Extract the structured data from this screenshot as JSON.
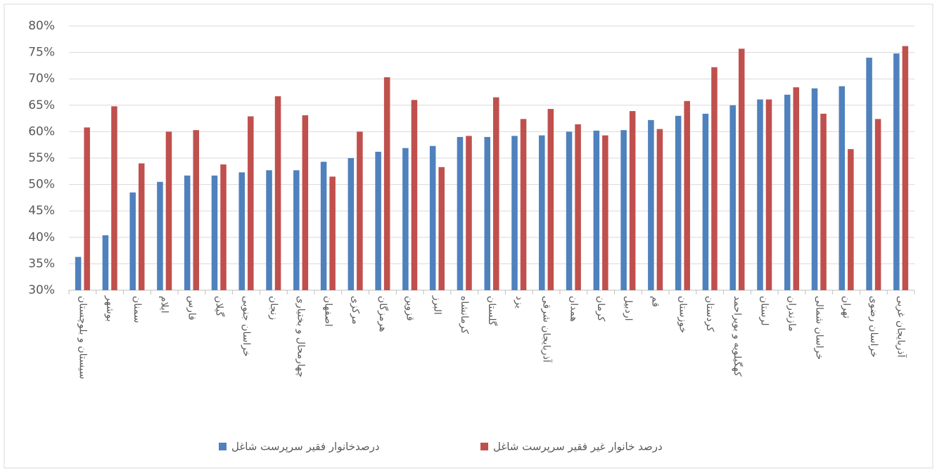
{
  "chart_data": {
    "type": "bar",
    "categories": [
      "سیستان و بلوچستان",
      "بوشهر",
      "سمنان",
      "ایلام",
      "فارس",
      "گیلان",
      "خراسان جنوبی",
      "زنجان",
      "چهارمحال و بختیاری",
      "اصفهان",
      "مرکزی",
      "هرمزگان",
      "قزوین",
      "البرز",
      "کرمانشاه",
      "گلستان",
      "یزد",
      "آذربایجان شرقی",
      "همدان",
      "کرمان",
      "اردبیل",
      "قم",
      "خوزستان",
      "کردستان",
      "کهگیلویه و بویراحمد",
      "لرستان",
      "مازندران",
      "خراسان شمالی",
      "تهران",
      "خراسان رضوی",
      "آذربایجان غربی"
    ],
    "series": [
      {
        "name": "درصدخانوار فقیر سرپرست شاغل",
        "color": "#4f81bd",
        "values": [
          36.3,
          40.4,
          48.5,
          50.5,
          51.7,
          51.7,
          52.3,
          52.7,
          52.7,
          54.3,
          55.0,
          56.2,
          56.9,
          57.3,
          59.0,
          59.0,
          59.2,
          59.3,
          60.0,
          60.2,
          60.3,
          62.2,
          63.0,
          63.4,
          65.0,
          66.1,
          67.0,
          68.2,
          68.6,
          74.0,
          74.8
        ]
      },
      {
        "name": "درصد خانوار غیر فقیر سرپرست شاغل",
        "color": "#c0504d",
        "values": [
          60.8,
          64.8,
          54.0,
          60.0,
          60.3,
          53.8,
          62.9,
          66.7,
          63.1,
          51.5,
          60.0,
          70.3,
          66.0,
          53.3,
          59.2,
          66.5,
          62.4,
          64.3,
          61.4,
          59.3,
          63.9,
          60.5,
          65.8,
          72.2,
          75.7,
          66.1,
          68.4,
          63.4,
          56.7,
          62.4,
          76.2
        ]
      }
    ],
    "ylim": [
      30,
      80
    ],
    "yticks": [
      {
        "value": 30,
        "label": "30%"
      },
      {
        "value": 35,
        "label": "35%"
      },
      {
        "value": 40,
        "label": "40%"
      },
      {
        "value": 45,
        "label": "45%"
      },
      {
        "value": 50,
        "label": "50%"
      },
      {
        "value": 55,
        "label": "55%"
      },
      {
        "value": 60,
        "label": "60%"
      },
      {
        "value": 65,
        "label": "65%"
      },
      {
        "value": 70,
        "label": "70%"
      },
      {
        "value": 75,
        "label": "75%"
      },
      {
        "value": 80,
        "label": "80%"
      }
    ],
    "grid": true
  }
}
